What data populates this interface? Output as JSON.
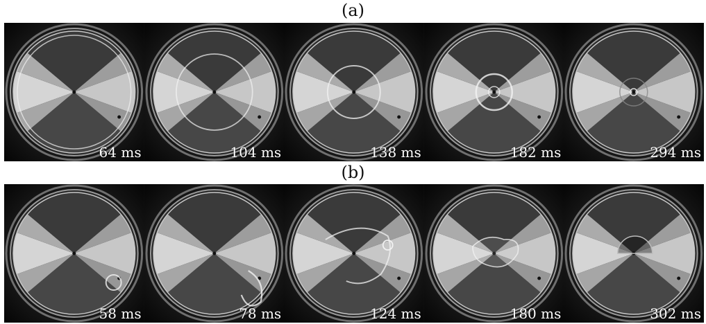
{
  "figure": {
    "panels": [
      {
        "label": "(a)",
        "frames": [
          {
            "time": "64 ms",
            "droplet": "large-ring"
          },
          {
            "time": "104 ms",
            "droplet": "ring-inner"
          },
          {
            "time": "138 ms",
            "droplet": "ring-small"
          },
          {
            "time": "182 ms",
            "droplet": "center-blob"
          },
          {
            "time": "294 ms",
            "droplet": "center-dot"
          }
        ]
      },
      {
        "label": "(b)",
        "frames": [
          {
            "time": "58 ms",
            "droplet": "side-bubble"
          },
          {
            "time": "78 ms",
            "droplet": "side-arc"
          },
          {
            "time": "124 ms",
            "droplet": "splash"
          },
          {
            "time": "180 ms",
            "droplet": "fragment"
          },
          {
            "time": "302 ms",
            "droplet": "half-disc"
          }
        ]
      }
    ]
  }
}
